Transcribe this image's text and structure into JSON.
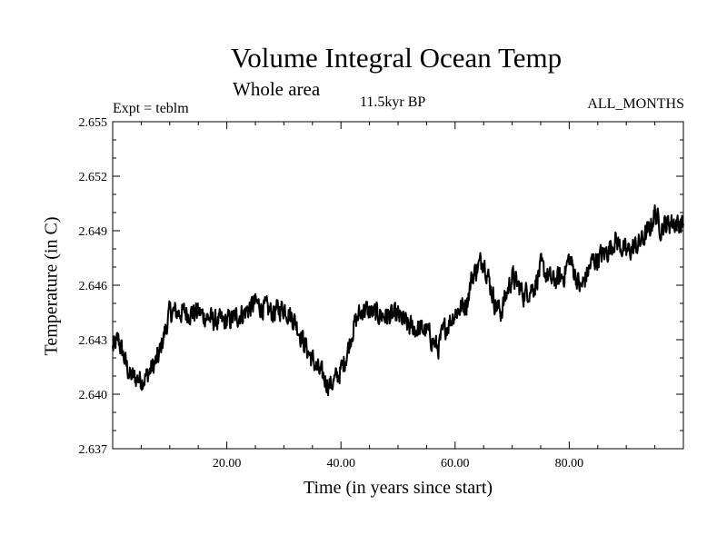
{
  "chart_data": {
    "type": "line",
    "title": "Volume Integral Ocean Temp",
    "subtitle": "Whole area",
    "annotations": {
      "expt": "Expt = teblm",
      "period": "11.5kyr BP",
      "months": "ALL_MONTHS"
    },
    "xlabel": "Time (in years since start)",
    "ylabel": "Temperature (in C)",
    "xlim": [
      0,
      100
    ],
    "ylim": [
      2.637,
      2.655
    ],
    "x_ticks": [
      20,
      40,
      60,
      80
    ],
    "x_tick_labels": [
      "20.00",
      "40.00",
      "60.00",
      "80.00"
    ],
    "y_ticks": [
      2.637,
      2.64,
      2.643,
      2.646,
      2.649,
      2.652,
      2.655
    ],
    "y_tick_labels": [
      "2.637",
      "2.640",
      "2.643",
      "2.646",
      "2.649",
      "2.652",
      "2.655"
    ],
    "grid": false,
    "series": [
      {
        "name": "Volume integral ocean temperature",
        "color": "#000000",
        "noise_amplitude": 0.0009,
        "trend": {
          "x": [
            0,
            1,
            2,
            3,
            5,
            6,
            8,
            10,
            12,
            15,
            18,
            20,
            23,
            25,
            28,
            30,
            32,
            34,
            36,
            38,
            39,
            40,
            41,
            42,
            43,
            44,
            45,
            48,
            50,
            52,
            55,
            57,
            58,
            60,
            62,
            63,
            65,
            66,
            67,
            68,
            70,
            72,
            74,
            75,
            77,
            79,
            80,
            82,
            84,
            86,
            87,
            88,
            90,
            92,
            94,
            95,
            96,
            98,
            100
          ],
          "y": [
            2.6425,
            2.643,
            2.642,
            2.641,
            2.6408,
            2.641,
            2.642,
            2.6445,
            2.6445,
            2.6445,
            2.644,
            2.644,
            2.6445,
            2.645,
            2.6445,
            2.6448,
            2.644,
            2.6425,
            2.6413,
            2.6405,
            2.6408,
            2.6413,
            2.6422,
            2.6435,
            2.6443,
            2.6447,
            2.6445,
            2.6443,
            2.6443,
            2.6437,
            2.6435,
            2.6425,
            2.6435,
            2.6445,
            2.645,
            2.6465,
            2.6475,
            2.6462,
            2.645,
            2.6445,
            2.6465,
            2.6455,
            2.646,
            2.647,
            2.6462,
            2.6465,
            2.6475,
            2.6458,
            2.6473,
            2.6477,
            2.648,
            2.6485,
            2.6478,
            2.6482,
            2.649,
            2.65,
            2.6492,
            2.6495,
            2.6493
          ]
        }
      }
    ]
  }
}
